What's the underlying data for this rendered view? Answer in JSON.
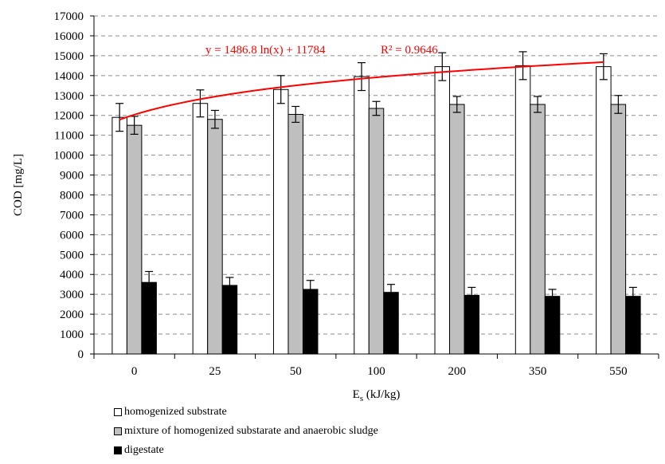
{
  "chart_data": {
    "type": "bar",
    "xlabel": "E",
    "xlabel_subscript": "s",
    "xlabel_unit": " (kJ/kg)",
    "ylabel": "COD [mg/L]",
    "ylim": [
      0,
      17000
    ],
    "yticks": [
      0,
      1000,
      2000,
      3000,
      4000,
      5000,
      6000,
      7000,
      8000,
      9000,
      10000,
      11000,
      12000,
      13000,
      14000,
      15000,
      16000,
      17000
    ],
    "grid": true,
    "categories": [
      "0",
      "25",
      "50",
      "100",
      "200",
      "350",
      "550"
    ],
    "series": [
      {
        "name": "homogenized substrate",
        "color": "#ffffff",
        "values": [
          11900,
          12600,
          13300,
          13950,
          14450,
          14500,
          14450
        ],
        "errors": [
          700,
          680,
          700,
          700,
          700,
          700,
          650
        ]
      },
      {
        "name": "mixture of homogenized substarate and anaerobic sludge",
        "color": "#bfbfbf",
        "values": [
          11500,
          11800,
          12050,
          12350,
          12550,
          12550,
          12550
        ],
        "errors": [
          450,
          450,
          400,
          350,
          400,
          400,
          450
        ]
      },
      {
        "name": "digestate",
        "color": "#000000",
        "values": [
          3600,
          3450,
          3250,
          3100,
          2950,
          2900,
          2900
        ],
        "errors": [
          550,
          400,
          450,
          400,
          400,
          350,
          450
        ]
      }
    ],
    "trendline": {
      "series": "homogenized substrate",
      "type": "log",
      "a": 1486.8,
      "b": 11784,
      "color": "#ff0000",
      "label": "y = 1486.8 ln(x) + 11784",
      "r2_label": "R² = 0.9646"
    },
    "legend_position": "bottom-left"
  }
}
